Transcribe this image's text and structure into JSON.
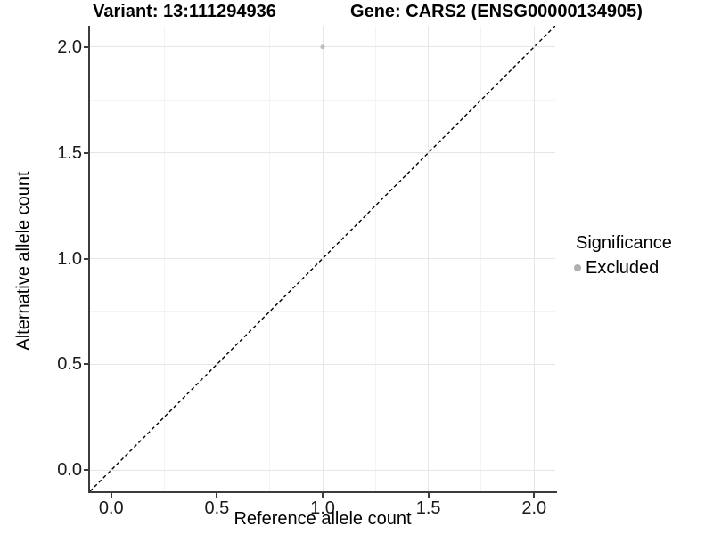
{
  "titles": {
    "left": "Variant: 13:111294936",
    "right": "Gene: CARS2 (ENSG00000134905)"
  },
  "chart_data": {
    "type": "scatter",
    "xlabel": "Reference allele count",
    "ylabel": "Alternative allele count",
    "xlim": [
      -0.1,
      2.1
    ],
    "ylim": [
      -0.1,
      2.1
    ],
    "x_ticks": [
      0,
      0.5,
      1,
      1.5,
      2
    ],
    "x_tick_labels": [
      "0.0",
      "0.5",
      "1.0",
      "1.5",
      "2.0"
    ],
    "y_ticks": [
      0,
      0.5,
      1,
      1.5,
      2
    ],
    "y_tick_labels": [
      "0.0",
      "0.5",
      "1.0",
      "1.5",
      "2.0"
    ],
    "x_minor_ticks": [
      0.25,
      0.75,
      1.25,
      1.75
    ],
    "y_minor_ticks": [
      0.25,
      0.75,
      1.25,
      1.75
    ],
    "grid": true,
    "series": [
      {
        "name": "Excluded",
        "color": "#bdbdbd",
        "points": [
          {
            "x": 1.0,
            "y": 2.0
          }
        ]
      }
    ],
    "reference_line": {
      "type": "identity",
      "style": "dashed",
      "color": "#000000",
      "x1": -0.1,
      "y1": -0.1,
      "x2": 2.1,
      "y2": 2.1
    },
    "legend": {
      "title": "Significance",
      "position": "right",
      "entries": [
        {
          "label": "Excluded",
          "color": "#b0b0b0",
          "marker": "circle"
        }
      ]
    }
  },
  "colors": {
    "grid_major": "#e6e6e6",
    "grid_minor": "#f3f3f3",
    "axis_line": "#3c3c3c",
    "tick_label": "#1a1a1a",
    "point": "#bdbdbd",
    "legend_marker": "#b0b0b0"
  }
}
